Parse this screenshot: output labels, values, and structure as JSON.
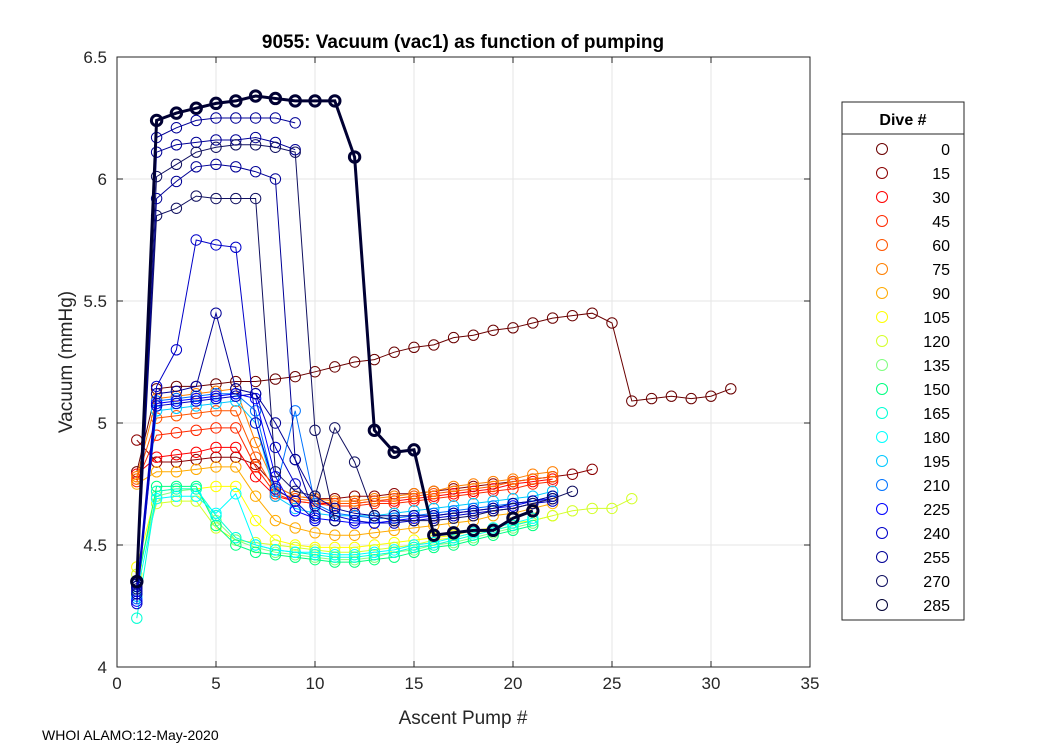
{
  "chart_data": {
    "type": "line",
    "title": "9055: Vacuum (vac1) as function of pumping",
    "xlabel": "Ascent Pump #",
    "ylabel": "Vacuum (mmHg)",
    "xlim": [
      0,
      35
    ],
    "ylim": [
      4,
      6.5
    ],
    "xticks": [
      0,
      5,
      10,
      15,
      20,
      25,
      30,
      35
    ],
    "yticks": [
      4,
      4.5,
      5,
      5.5,
      6,
      6.5
    ],
    "ytick_labels": [
      "4",
      "4.5",
      "5",
      "5.5",
      "6",
      "6.5"
    ],
    "grid": true,
    "legend": {
      "title": "Dive #",
      "placement": "right",
      "entries": [
        "0",
        "15",
        "30",
        "45",
        "60",
        "75",
        "90",
        "105",
        "120",
        "135",
        "150",
        "165",
        "180",
        "195",
        "210",
        "225",
        "240",
        "255",
        "270",
        "285"
      ],
      "colors": [
        "#6a0000",
        "#8b0000",
        "#ff0000",
        "#ff2a00",
        "#ff5500",
        "#ff7f00",
        "#ffaa00",
        "#ffff00",
        "#d4ff2a",
        "#7fff7f",
        "#00ff80",
        "#00ffd4",
        "#00ffff",
        "#00c8ff",
        "#0073ff",
        "#0000ff",
        "#0000c8",
        "#000096",
        "#101060",
        "#000033"
      ]
    },
    "series": [
      {
        "name": "0",
        "color": "#6a0000",
        "lw": 1,
        "x": [
          1,
          2,
          3,
          4,
          5,
          6,
          7,
          8,
          9,
          10,
          11,
          12,
          13,
          14,
          15,
          16,
          17,
          18,
          19,
          20,
          21,
          22,
          23,
          24,
          25,
          26,
          27,
          28,
          29,
          30,
          31
        ],
        "y": [
          4.8,
          5.14,
          5.15,
          5.15,
          5.16,
          5.17,
          5.17,
          5.18,
          5.19,
          5.21,
          5.23,
          5.25,
          5.26,
          5.29,
          5.31,
          5.32,
          5.35,
          5.36,
          5.38,
          5.39,
          5.41,
          5.43,
          5.44,
          5.45,
          5.41,
          5.09,
          5.1,
          5.11,
          5.1,
          5.11,
          5.14
        ]
      },
      {
        "name": "15",
        "color": "#8b0000",
        "lw": 1,
        "x": [
          1,
          2,
          3,
          4,
          5,
          6,
          7,
          8,
          9,
          10,
          11,
          12,
          13,
          14,
          15,
          16,
          17,
          18,
          19,
          20,
          21,
          22,
          23,
          24
        ],
        "y": [
          4.93,
          4.84,
          4.84,
          4.85,
          4.86,
          4.86,
          4.83,
          4.74,
          4.7,
          4.69,
          4.69,
          4.7,
          4.7,
          4.71,
          4.71,
          4.72,
          4.73,
          4.74,
          4.75,
          4.76,
          4.77,
          4.78,
          4.79,
          4.81
        ]
      },
      {
        "name": "30",
        "color": "#ff0000",
        "lw": 1,
        "x": [
          1,
          2,
          3,
          4,
          5,
          6,
          7,
          8,
          9,
          10,
          11,
          12,
          13,
          14,
          15,
          16,
          17,
          18,
          19,
          20,
          21,
          22
        ],
        "y": [
          4.79,
          4.86,
          4.87,
          4.88,
          4.9,
          4.9,
          4.78,
          4.7,
          4.68,
          4.67,
          4.67,
          4.67,
          4.68,
          4.68,
          4.69,
          4.7,
          4.71,
          4.72,
          4.73,
          4.75,
          4.76,
          4.77
        ]
      },
      {
        "name": "45",
        "color": "#ff2a00",
        "lw": 1,
        "x": [
          1,
          2,
          3,
          4,
          5,
          6,
          7,
          8,
          9,
          10,
          11,
          12,
          13,
          14,
          15,
          16,
          17,
          18,
          19,
          20,
          21,
          22
        ],
        "y": [
          4.76,
          4.95,
          4.96,
          4.97,
          4.98,
          4.98,
          4.82,
          4.71,
          4.68,
          4.67,
          4.66,
          4.66,
          4.67,
          4.67,
          4.68,
          4.69,
          4.7,
          4.71,
          4.72,
          4.73,
          4.75,
          4.76
        ]
      },
      {
        "name": "60",
        "color": "#ff5500",
        "lw": 1,
        "x": [
          1,
          2,
          3,
          4,
          5,
          6,
          7,
          8,
          9,
          10,
          11,
          12,
          13,
          14,
          15,
          16,
          17,
          18,
          19,
          20,
          21,
          22
        ],
        "y": [
          4.77,
          5.02,
          5.03,
          5.04,
          5.05,
          5.05,
          4.86,
          4.72,
          4.69,
          4.68,
          4.67,
          4.67,
          4.68,
          4.69,
          4.7,
          4.71,
          4.72,
          4.73,
          4.74,
          4.76,
          4.77,
          4.78
        ]
      },
      {
        "name": "75",
        "color": "#ff7f00",
        "lw": 1,
        "x": [
          1,
          2,
          3,
          4,
          5,
          6,
          7,
          8,
          9,
          10,
          11,
          12,
          13,
          14,
          15,
          16,
          17,
          18,
          19,
          20,
          21,
          22
        ],
        "y": [
          4.78,
          5.1,
          5.11,
          5.12,
          5.13,
          5.14,
          4.92,
          4.74,
          4.7,
          4.69,
          4.68,
          4.68,
          4.69,
          4.7,
          4.71,
          4.72,
          4.74,
          4.75,
          4.76,
          4.77,
          4.79,
          4.8
        ]
      },
      {
        "name": "90",
        "color": "#ffaa00",
        "lw": 1,
        "x": [
          1,
          2,
          3,
          4,
          5,
          6,
          7,
          8,
          9,
          10,
          11,
          12,
          13,
          14,
          15,
          16,
          17,
          18,
          19,
          20,
          21,
          22
        ],
        "y": [
          4.75,
          4.8,
          4.8,
          4.81,
          4.82,
          4.82,
          4.7,
          4.6,
          4.57,
          4.55,
          4.54,
          4.54,
          4.55,
          4.56,
          4.57,
          4.58,
          4.59,
          4.6,
          4.62,
          4.63,
          4.65,
          4.67
        ]
      },
      {
        "name": "105",
        "color": "#ffff00",
        "lw": 1,
        "x": [
          1,
          2,
          3,
          4,
          5,
          6,
          7,
          8,
          9,
          10,
          11,
          12,
          13,
          14,
          15,
          16,
          17,
          18,
          19,
          20,
          21,
          22
        ],
        "y": [
          4.41,
          4.72,
          4.73,
          4.73,
          4.74,
          4.74,
          4.6,
          4.52,
          4.5,
          4.49,
          4.49,
          4.49,
          4.5,
          4.51,
          4.52,
          4.53,
          4.54,
          4.56,
          4.57,
          4.59,
          4.6,
          4.62
        ]
      },
      {
        "name": "120",
        "color": "#d4ff2a",
        "lw": 1,
        "x": [
          1,
          2,
          3,
          4,
          5,
          6,
          7,
          8,
          9,
          10,
          11,
          12,
          13,
          14,
          15,
          16,
          17,
          18,
          19,
          20,
          21,
          22,
          23,
          24,
          25,
          26
        ],
        "y": [
          4.38,
          4.67,
          4.68,
          4.68,
          4.57,
          4.52,
          4.51,
          4.5,
          4.49,
          4.48,
          4.47,
          4.47,
          4.48,
          4.49,
          4.5,
          4.52,
          4.53,
          4.55,
          4.56,
          4.58,
          4.6,
          4.62,
          4.64,
          4.65,
          4.65,
          4.69
        ]
      },
      {
        "name": "135",
        "color": "#7fff7f",
        "lw": 1,
        "x": [
          1,
          2,
          3,
          4,
          5,
          6,
          7,
          8,
          9,
          10,
          11,
          12,
          13,
          14,
          15,
          16,
          17,
          18,
          19,
          20,
          21
        ],
        "y": [
          4.35,
          4.7,
          4.72,
          4.73,
          4.6,
          4.52,
          4.49,
          4.47,
          4.46,
          4.45,
          4.44,
          4.44,
          4.45,
          4.47,
          4.48,
          4.5,
          4.51,
          4.53,
          4.55,
          4.57,
          4.59
        ]
      },
      {
        "name": "150",
        "color": "#00ff80",
        "lw": 1,
        "x": [
          1,
          2,
          3,
          4,
          5,
          6,
          7,
          8,
          9,
          10,
          11,
          12,
          13,
          14,
          15,
          16,
          17,
          18,
          19,
          20,
          21
        ],
        "y": [
          4.33,
          4.74,
          4.74,
          4.74,
          4.58,
          4.5,
          4.47,
          4.46,
          4.45,
          4.44,
          4.43,
          4.43,
          4.44,
          4.45,
          4.47,
          4.49,
          4.5,
          4.52,
          4.54,
          4.56,
          4.58
        ]
      },
      {
        "name": "165",
        "color": "#00ffd4",
        "lw": 1,
        "x": [
          1,
          2,
          3,
          4,
          5,
          6,
          7,
          8,
          9,
          10,
          11,
          12,
          13,
          14,
          15,
          16,
          17,
          18,
          19,
          20,
          21
        ],
        "y": [
          4.2,
          4.72,
          4.73,
          4.73,
          4.62,
          4.53,
          4.5,
          4.48,
          4.47,
          4.46,
          4.45,
          4.45,
          4.46,
          4.47,
          4.49,
          4.5,
          4.52,
          4.54,
          4.56,
          4.58,
          4.6
        ]
      },
      {
        "name": "180",
        "color": "#00ffff",
        "lw": 1,
        "x": [
          1,
          2,
          3,
          4,
          5,
          6,
          7,
          8,
          9,
          10,
          11,
          12,
          13,
          14,
          15,
          16,
          17,
          18,
          19,
          20,
          21
        ],
        "y": [
          4.3,
          4.69,
          4.7,
          4.7,
          4.63,
          4.71,
          4.5,
          4.48,
          4.47,
          4.47,
          4.46,
          4.46,
          4.47,
          4.48,
          4.5,
          4.51,
          4.53,
          4.55,
          4.57,
          4.59,
          4.61
        ]
      },
      {
        "name": "195",
        "color": "#00c8ff",
        "lw": 1,
        "x": [
          1,
          2,
          3,
          4,
          5,
          6,
          7,
          8,
          9,
          10,
          11,
          12,
          13,
          14,
          15,
          16,
          17,
          18,
          19,
          20,
          21,
          22
        ],
        "y": [
          4.29,
          5.05,
          5.06,
          5.07,
          5.08,
          5.09,
          5.0,
          4.7,
          4.65,
          4.63,
          4.62,
          4.62,
          4.62,
          4.63,
          4.64,
          4.65,
          4.66,
          4.67,
          4.68,
          4.69,
          4.7,
          4.72
        ]
      },
      {
        "name": "210",
        "color": "#0073ff",
        "lw": 1,
        "x": [
          1,
          2,
          3,
          4,
          5,
          6,
          7,
          8,
          9,
          10,
          11,
          12,
          13,
          14,
          15,
          16,
          17,
          18,
          19,
          20,
          21,
          22
        ],
        "y": [
          4.28,
          5.09,
          5.1,
          5.11,
          5.12,
          5.12,
          5.05,
          4.72,
          5.05,
          4.67,
          4.63,
          4.62,
          4.61,
          4.61,
          4.62,
          4.63,
          4.64,
          4.65,
          4.66,
          4.67,
          4.68,
          4.7
        ]
      },
      {
        "name": "225",
        "color": "#0000ff",
        "lw": 1,
        "x": [
          1,
          2,
          3,
          4,
          5,
          6,
          7,
          8,
          9,
          10,
          11,
          12,
          13,
          14,
          15,
          16,
          17,
          18,
          19,
          20,
          21,
          22
        ],
        "y": [
          4.27,
          5.08,
          5.09,
          5.1,
          5.11,
          5.12,
          5.1,
          4.78,
          4.64,
          4.61,
          4.6,
          4.59,
          4.59,
          4.6,
          4.61,
          4.62,
          4.63,
          4.64,
          4.65,
          4.66,
          4.68,
          4.69
        ]
      },
      {
        "name": "240",
        "color": "#0000c8",
        "lw": 1,
        "x": [
          1,
          2,
          3,
          4,
          5,
          6,
          7,
          8,
          9,
          10,
          11,
          12,
          13,
          14,
          15,
          16,
          17,
          18,
          19,
          20,
          21,
          22
        ],
        "y": [
          4.26,
          5.07,
          5.08,
          5.09,
          5.1,
          5.11,
          5.12,
          4.9,
          4.75,
          4.66,
          4.62,
          4.6,
          4.59,
          4.59,
          4.6,
          4.61,
          4.62,
          4.63,
          4.64,
          4.65,
          4.67,
          4.68
        ]
      },
      {
        "name": "255",
        "color": "#000096",
        "lw": 1,
        "x": [
          1,
          2,
          3,
          4,
          5,
          6,
          7,
          8,
          9,
          10,
          11,
          12,
          13,
          14,
          15,
          16,
          17,
          18,
          19,
          20,
          21,
          22
        ],
        "y": [
          4.3,
          5.12,
          5.13,
          5.15,
          5.45,
          5.14,
          5.12,
          5.0,
          4.85,
          4.7,
          4.65,
          4.63,
          4.62,
          4.62,
          4.62,
          4.62,
          4.63,
          4.64,
          4.65,
          4.67,
          4.68,
          4.7
        ]
      },
      {
        "name": "270",
        "color": "#101060",
        "lw": 1,
        "x": [
          1,
          2,
          3,
          4,
          5,
          6,
          7,
          8,
          9,
          10,
          11,
          12,
          13,
          14,
          15,
          16,
          17,
          18,
          19,
          20,
          21,
          22,
          23
        ],
        "y": [
          4.32,
          5.85,
          5.88,
          5.93,
          5.92,
          5.92,
          5.92,
          4.8,
          4.72,
          4.7,
          4.98,
          4.84,
          4.62,
          4.6,
          4.6,
          4.6,
          4.61,
          4.62,
          4.64,
          4.65,
          4.67,
          4.69,
          4.72
        ]
      },
      {
        "name": "285",
        "color": "#000033",
        "lw": 3,
        "x": [
          1,
          2,
          3,
          4,
          5,
          6,
          7,
          8,
          9,
          10,
          11,
          12,
          13,
          14,
          15,
          16,
          17,
          18,
          19,
          20,
          21
        ],
        "y": [
          4.35,
          6.24,
          6.27,
          6.29,
          6.31,
          6.32,
          6.34,
          6.33,
          6.32,
          6.32,
          6.32,
          6.09,
          4.97,
          4.88,
          4.89,
          4.54,
          4.55,
          4.56,
          4.56,
          4.61,
          4.64
        ]
      }
    ],
    "extra_series": [
      {
        "color": "#000096",
        "x": [
          1,
          2,
          3,
          4,
          5,
          6,
          7,
          8,
          9
        ],
        "y": [
          4.34,
          6.11,
          6.14,
          6.15,
          6.16,
          6.16,
          6.17,
          6.15,
          6.12
        ]
      },
      {
        "color": "#000096",
        "x": [
          1,
          2,
          3,
          4,
          5,
          6,
          7,
          8,
          9
        ],
        "y": [
          4.34,
          6.17,
          6.21,
          6.24,
          6.25,
          6.25,
          6.25,
          6.25,
          6.23
        ]
      },
      {
        "color": "#101060",
        "x": [
          1,
          2,
          3,
          4,
          5,
          6,
          7,
          8,
          9,
          10,
          11
        ],
        "y": [
          4.33,
          6.01,
          6.06,
          6.11,
          6.13,
          6.14,
          6.14,
          6.13,
          6.11,
          4.97,
          4.6
        ]
      },
      {
        "color": "#000096",
        "x": [
          1,
          2,
          3,
          4,
          5,
          6,
          7,
          8,
          9,
          10
        ],
        "y": [
          4.33,
          5.92,
          5.99,
          6.05,
          6.06,
          6.05,
          6.03,
          6.0,
          4.85,
          4.62
        ]
      },
      {
        "color": "#0000c8",
        "x": [
          1,
          2,
          3,
          4,
          5,
          6,
          7,
          8,
          9,
          10
        ],
        "y": [
          4.31,
          5.15,
          5.3,
          5.75,
          5.73,
          5.72,
          5.0,
          4.73,
          4.68,
          4.6
        ]
      }
    ]
  },
  "footer": "WHOI ALAMO:12-May-2020"
}
